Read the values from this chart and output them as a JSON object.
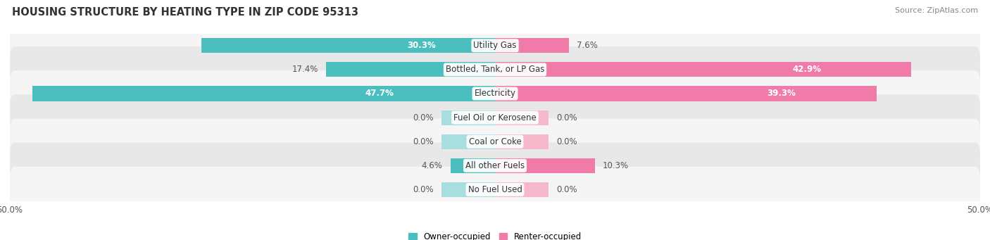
{
  "title": "HOUSING STRUCTURE BY HEATING TYPE IN ZIP CODE 95313",
  "source": "Source: ZipAtlas.com",
  "categories": [
    "Utility Gas",
    "Bottled, Tank, or LP Gas",
    "Electricity",
    "Fuel Oil or Kerosene",
    "Coal or Coke",
    "All other Fuels",
    "No Fuel Used"
  ],
  "owner_values": [
    30.3,
    17.4,
    47.7,
    0.0,
    0.0,
    4.6,
    0.0
  ],
  "renter_values": [
    7.6,
    42.9,
    39.3,
    0.0,
    0.0,
    10.3,
    0.0
  ],
  "owner_color": "#4bbfbf",
  "renter_color": "#f07aa8",
  "owner_color_light": "#a8dede",
  "renter_color_light": "#f8b8cc",
  "owner_label": "Owner-occupied",
  "renter_label": "Renter-occupied",
  "xlim": 50.0,
  "bar_height": 0.62,
  "row_bg_light": "#f5f5f5",
  "row_bg_dark": "#e8e8e8",
  "title_fontsize": 10.5,
  "label_fontsize": 8.5,
  "source_fontsize": 8,
  "stub_size": 5.5
}
